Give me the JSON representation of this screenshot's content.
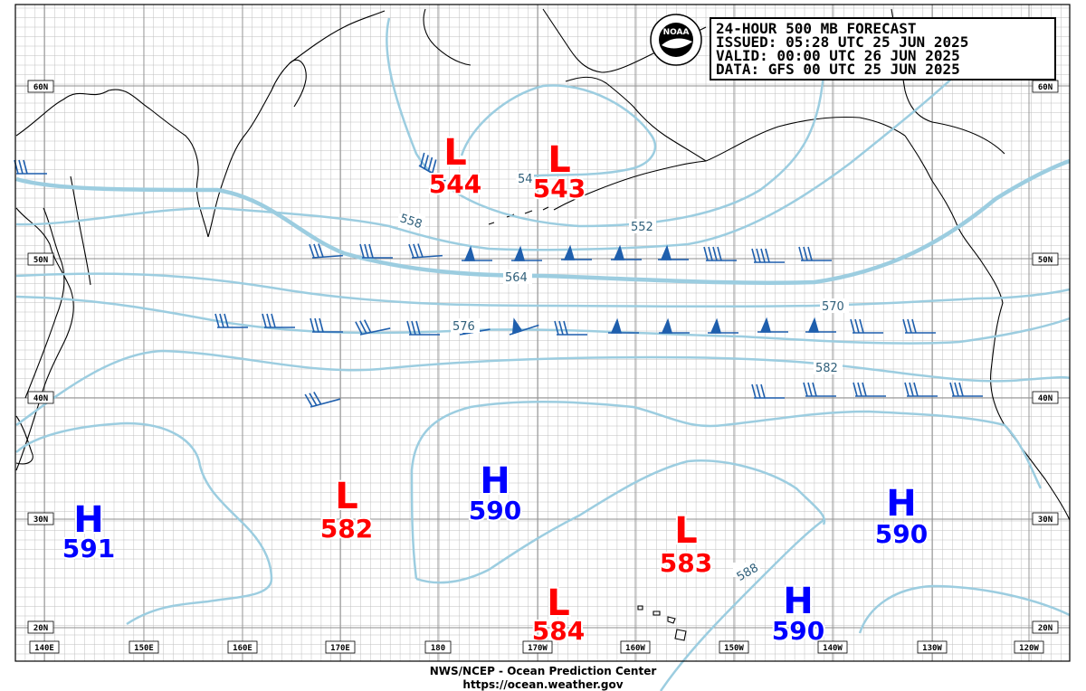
{
  "info_box": {
    "line1": "24-HOUR 500 MB FORECAST",
    "line2": "ISSUED: 05:28 UTC 25 JUN 2025",
    "line3": "VALID:  00:00 UTC 26 JUN 2025",
    "line4": "DATA:  GFS 00 UTC 25 JUN 2025"
  },
  "logo": {
    "text": "NOAA"
  },
  "footer": {
    "line1": "NWS/NCEP - Ocean Prediction Center",
    "line2": "https://ocean.weather.gov"
  },
  "lat_labels": [
    "60N",
    "50N",
    "40N",
    "30N",
    "20N"
  ],
  "lon_labels": [
    "140E",
    "150E",
    "160E",
    "170E",
    "180",
    "170W",
    "160W",
    "150W",
    "140W",
    "130W",
    "120W"
  ],
  "contour_labels": [
    "558",
    "552",
    "564",
    "570",
    "576",
    "582",
    "588",
    "54"
  ],
  "pressure_centers": [
    {
      "type": "L",
      "value": "544"
    },
    {
      "type": "L",
      "value": "543"
    },
    {
      "type": "L",
      "value": "582"
    },
    {
      "type": "L",
      "value": "583"
    },
    {
      "type": "L",
      "value": "584"
    },
    {
      "type": "H",
      "value": "591"
    },
    {
      "type": "H",
      "value": "590"
    },
    {
      "type": "H",
      "value": "590"
    },
    {
      "type": "H",
      "value": "590"
    }
  ],
  "colors": {
    "low": "#ff0000",
    "high": "#0000ff",
    "contour": "#9ccde0",
    "contour_label": "#2f5f7a",
    "wind_barb": "#1f5fad",
    "coastline": "#000000",
    "grid": "#999999"
  }
}
